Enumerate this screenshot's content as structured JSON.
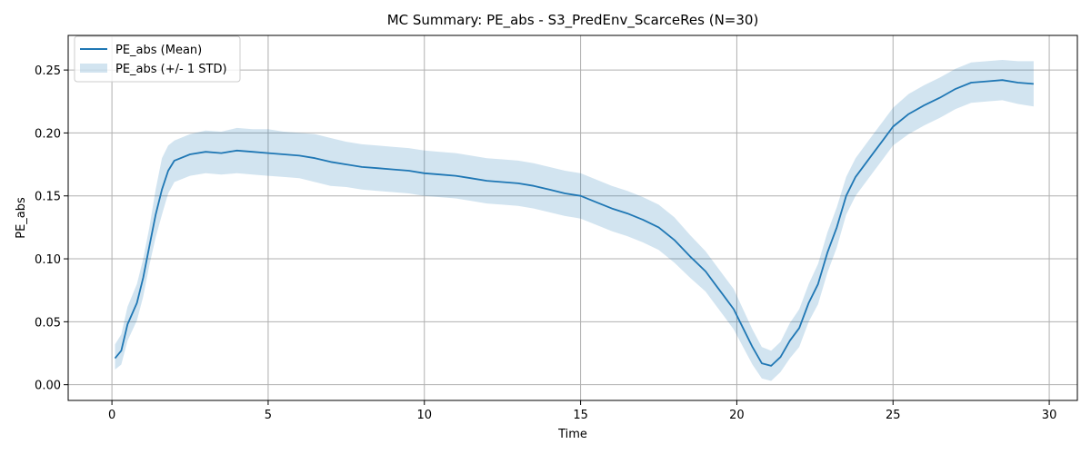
{
  "chart_data": {
    "type": "line",
    "title": "MC Summary: PE_abs - S3_PredEnv_ScarceRes (N=30)",
    "xlabel": "Time",
    "ylabel": "PE_abs",
    "xlim": [
      -1.4,
      30.9
    ],
    "ylim": [
      -0.0125,
      0.2775
    ],
    "xticks": [
      0,
      5,
      10,
      15,
      20,
      25,
      30
    ],
    "yticks": [
      0.0,
      0.05,
      0.1,
      0.15,
      0.2,
      0.25
    ],
    "xtick_labels": [
      "0",
      "5",
      "10",
      "15",
      "20",
      "25",
      "30"
    ],
    "ytick_labels": [
      "0.00",
      "0.05",
      "0.10",
      "0.15",
      "0.20",
      "0.25"
    ],
    "grid": true,
    "legend_position": "top-left",
    "colors": {
      "line": "#1f77b4",
      "band": "#1f77b4",
      "grid": "#b0b0b0"
    },
    "series": [
      {
        "name": "PE_abs (Mean)",
        "kind": "line",
        "x": [
          0.1,
          0.3,
          0.5,
          0.8,
          1.0,
          1.2,
          1.4,
          1.6,
          1.8,
          2.0,
          2.5,
          3.0,
          3.5,
          4.0,
          4.5,
          5.0,
          5.5,
          6.0,
          6.5,
          7.0,
          7.5,
          8.0,
          8.5,
          9.0,
          9.5,
          10.0,
          10.5,
          11.0,
          11.5,
          12.0,
          12.5,
          13.0,
          13.5,
          14.0,
          14.5,
          15.0,
          15.5,
          16.0,
          16.5,
          17.0,
          17.5,
          18.0,
          18.5,
          19.0,
          19.3,
          19.6,
          19.9,
          20.2,
          20.5,
          20.8,
          21.1,
          21.4,
          21.7,
          22.0,
          22.3,
          22.6,
          22.9,
          23.2,
          23.5,
          23.8,
          24.1,
          24.4,
          24.7,
          25.0,
          25.5,
          26.0,
          26.5,
          27.0,
          27.5,
          28.0,
          28.5,
          29.0,
          29.5
        ],
        "y": [
          0.021,
          0.027,
          0.048,
          0.065,
          0.085,
          0.11,
          0.135,
          0.155,
          0.17,
          0.178,
          0.183,
          0.185,
          0.184,
          0.186,
          0.185,
          0.184,
          0.183,
          0.182,
          0.18,
          0.177,
          0.175,
          0.173,
          0.172,
          0.171,
          0.17,
          0.168,
          0.167,
          0.166,
          0.164,
          0.162,
          0.161,
          0.16,
          0.158,
          0.155,
          0.152,
          0.15,
          0.145,
          0.14,
          0.136,
          0.131,
          0.125,
          0.115,
          0.102,
          0.09,
          0.08,
          0.07,
          0.06,
          0.045,
          0.03,
          0.017,
          0.015,
          0.022,
          0.035,
          0.045,
          0.065,
          0.08,
          0.105,
          0.125,
          0.15,
          0.165,
          0.175,
          0.185,
          0.195,
          0.205,
          0.215,
          0.222,
          0.228,
          0.235,
          0.24,
          0.241,
          0.242,
          0.24,
          0.239
        ]
      },
      {
        "name": "PE_abs (+/- 1 STD)",
        "kind": "band",
        "x": [
          0.1,
          0.3,
          0.5,
          0.8,
          1.0,
          1.2,
          1.4,
          1.6,
          1.8,
          2.0,
          2.5,
          3.0,
          3.5,
          4.0,
          4.5,
          5.0,
          5.5,
          6.0,
          6.5,
          7.0,
          7.5,
          8.0,
          8.5,
          9.0,
          9.5,
          10.0,
          10.5,
          11.0,
          11.5,
          12.0,
          12.5,
          13.0,
          13.5,
          14.0,
          14.5,
          15.0,
          15.5,
          16.0,
          16.5,
          17.0,
          17.5,
          18.0,
          18.5,
          19.0,
          19.3,
          19.6,
          19.9,
          20.2,
          20.5,
          20.8,
          21.1,
          21.4,
          21.7,
          22.0,
          22.3,
          22.6,
          22.9,
          23.2,
          23.5,
          23.8,
          24.1,
          24.4,
          24.7,
          25.0,
          25.5,
          26.0,
          26.5,
          27.0,
          27.5,
          28.0,
          28.5,
          29.0,
          29.5
        ],
        "upper": [
          0.032,
          0.04,
          0.062,
          0.08,
          0.1,
          0.125,
          0.155,
          0.18,
          0.19,
          0.194,
          0.199,
          0.202,
          0.201,
          0.204,
          0.203,
          0.203,
          0.201,
          0.2,
          0.199,
          0.196,
          0.193,
          0.191,
          0.19,
          0.189,
          0.188,
          0.186,
          0.185,
          0.184,
          0.182,
          0.18,
          0.179,
          0.178,
          0.176,
          0.173,
          0.17,
          0.168,
          0.163,
          0.158,
          0.154,
          0.149,
          0.143,
          0.133,
          0.119,
          0.106,
          0.096,
          0.086,
          0.076,
          0.06,
          0.044,
          0.03,
          0.027,
          0.034,
          0.049,
          0.06,
          0.08,
          0.096,
          0.121,
          0.141,
          0.165,
          0.18,
          0.19,
          0.2,
          0.21,
          0.22,
          0.231,
          0.238,
          0.244,
          0.251,
          0.256,
          0.257,
          0.258,
          0.257,
          0.257
        ],
        "lower": [
          0.012,
          0.016,
          0.035,
          0.051,
          0.07,
          0.095,
          0.117,
          0.135,
          0.152,
          0.161,
          0.166,
          0.168,
          0.167,
          0.168,
          0.167,
          0.166,
          0.165,
          0.164,
          0.161,
          0.158,
          0.157,
          0.155,
          0.154,
          0.153,
          0.152,
          0.15,
          0.149,
          0.148,
          0.146,
          0.144,
          0.143,
          0.142,
          0.14,
          0.137,
          0.134,
          0.132,
          0.127,
          0.122,
          0.118,
          0.113,
          0.107,
          0.097,
          0.085,
          0.074,
          0.064,
          0.054,
          0.044,
          0.03,
          0.016,
          0.005,
          0.003,
          0.01,
          0.021,
          0.03,
          0.05,
          0.064,
          0.089,
          0.109,
          0.135,
          0.15,
          0.16,
          0.17,
          0.18,
          0.19,
          0.199,
          0.206,
          0.212,
          0.219,
          0.224,
          0.225,
          0.226,
          0.223,
          0.221
        ]
      }
    ]
  }
}
